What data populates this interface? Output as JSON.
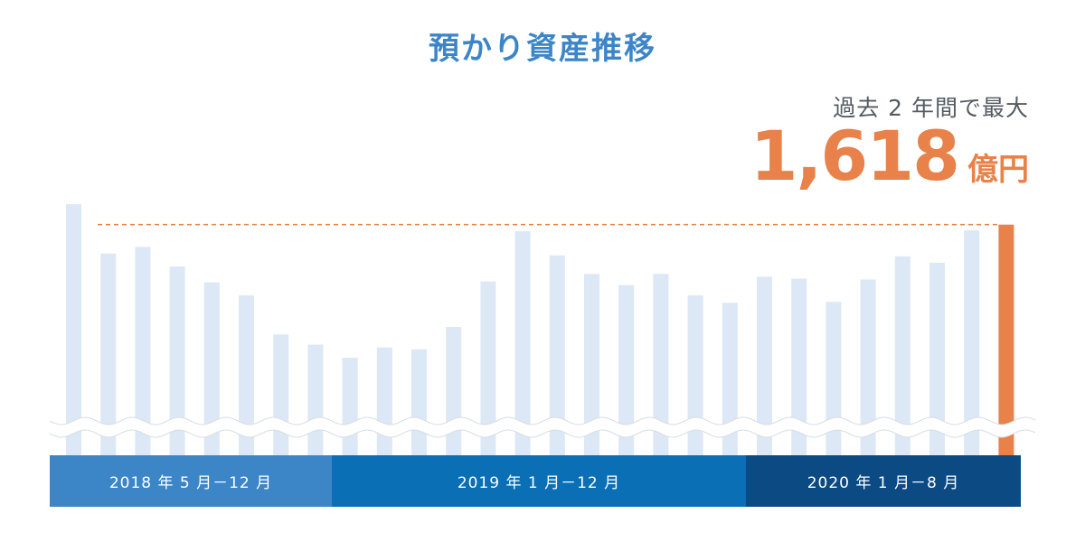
{
  "title": "預かり資産推移",
  "highlight": {
    "note": "過去 2 年間で最大",
    "value": "1,618",
    "unit": "億円"
  },
  "periods": [
    {
      "label": "2018 年 5 月－12 月",
      "color": "#3c86c8"
    },
    {
      "label": "2019 年 1 月－12 月",
      "color": "#0a6fb5"
    },
    {
      "label": "2020 年 1 月－8 月",
      "color": "#0c4a84"
    }
  ],
  "colors": {
    "bar": "#dce8f5",
    "highlight_bar": "#e8824a",
    "reference_line": "#e8824a",
    "title": "#3c86c8"
  },
  "chart_data": {
    "type": "bar",
    "axis_break": true,
    "reference_line": {
      "value": 1618,
      "style": "dashed"
    },
    "categories": [
      "2018-05",
      "2018-06",
      "2018-07",
      "2018-08",
      "2018-09",
      "2018-10",
      "2018-11",
      "2018-12",
      "2019-01",
      "2019-02",
      "2019-03",
      "2019-04",
      "2019-05",
      "2019-06",
      "2019-07",
      "2019-08",
      "2019-09",
      "2019-10",
      "2019-11",
      "2019-12",
      "2020-01",
      "2020-02",
      "2020-03",
      "2020-04",
      "2020-05",
      "2020-06",
      "2020-07",
      "2020-08"
    ],
    "values": [
      1640,
      1587,
      1594,
      1573,
      1556,
      1542,
      1500,
      1489,
      1475,
      1486,
      1484,
      1508,
      1557,
      1611,
      1585,
      1565,
      1553,
      1565,
      1542,
      1534,
      1562,
      1560,
      1535,
      1559,
      1584,
      1577,
      1612,
      1618
    ],
    "highlight_index": 27
  }
}
